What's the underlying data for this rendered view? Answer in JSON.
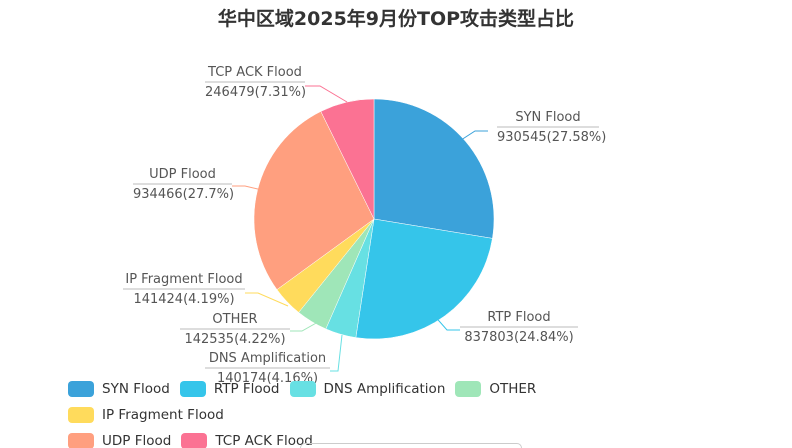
{
  "chart_data": {
    "type": "pie",
    "title": "华中区域2025年9月份TOP攻击类型占比",
    "legend_position": "bottom",
    "slices": [
      {
        "name": "SYN Flood",
        "value": 930545,
        "percent": "27.58%",
        "color": "#3ba2da"
      },
      {
        "name": "RTP Flood",
        "value": 837803,
        "percent": "24.84%",
        "color": "#35c5ea"
      },
      {
        "name": "DNS Amplification",
        "value": 140174,
        "percent": "4.16%",
        "color": "#67e0e3"
      },
      {
        "name": "OTHER",
        "value": 142535,
        "percent": "4.22%",
        "color": "#9fe6b8"
      },
      {
        "name": "IP Fragment Flood",
        "value": 141424,
        "percent": "4.19%",
        "color": "#ffdb5c"
      },
      {
        "name": "UDP Flood",
        "value": 934466,
        "percent": "27.7%",
        "color": "#ff9f7f"
      },
      {
        "name": "TCP ACK Flood",
        "value": 246479,
        "percent": "7.31%",
        "color": "#fb7293"
      }
    ]
  }
}
